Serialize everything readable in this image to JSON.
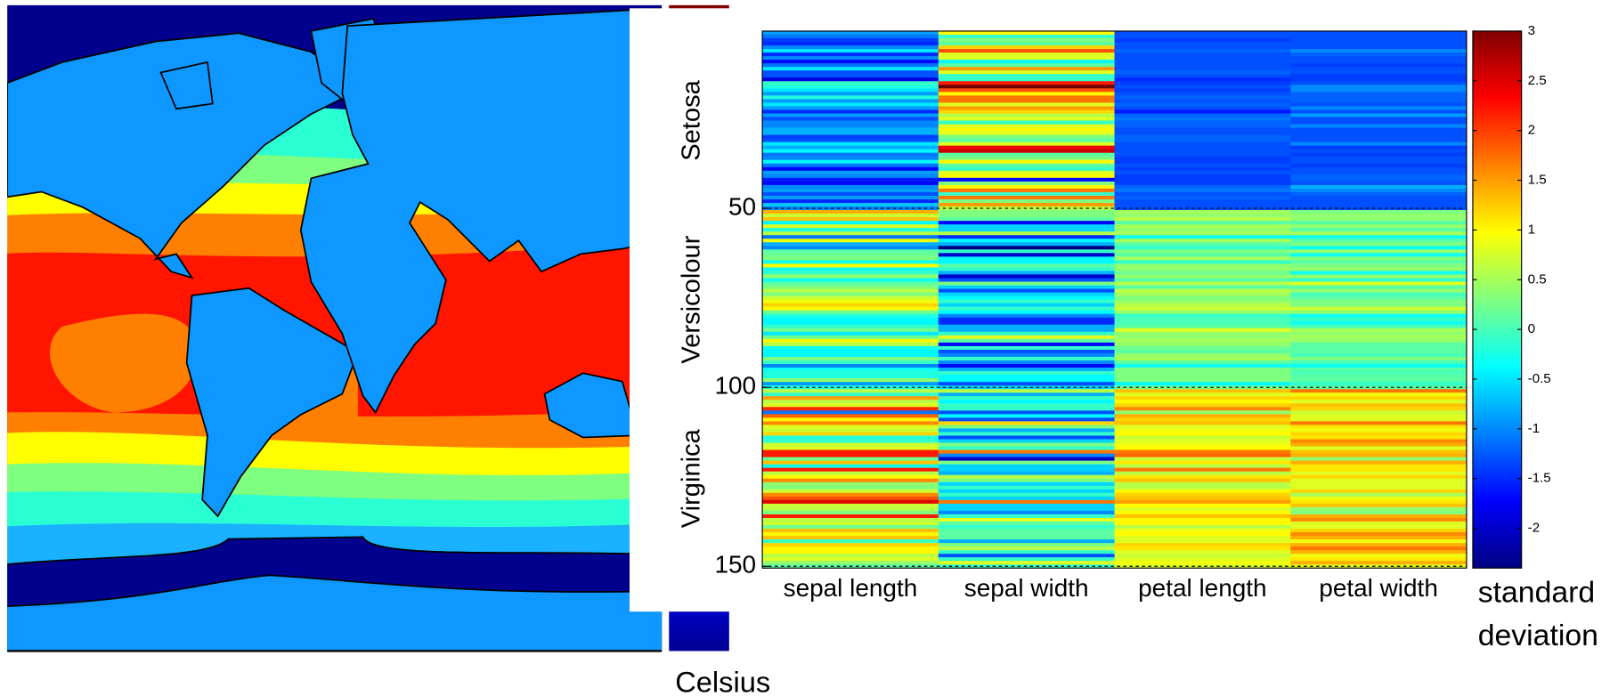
{
  "chart_data": {
    "type": "heatmap",
    "colormap": "jet",
    "categories": [
      "sepal length",
      "sepal width",
      "petal length",
      "petal width"
    ],
    "groups": [
      "Setosa",
      "Versicolour",
      "Virginica"
    ],
    "ylim": [
      0.5,
      150.5
    ],
    "yticks": [
      50,
      100,
      150
    ],
    "grid": true,
    "colorbar": {
      "label": [
        "standard",
        "deviation"
      ],
      "lim": [
        -2.4,
        3.0
      ],
      "ticks": [
        3,
        2.5,
        2,
        1.5,
        1,
        0.5,
        0,
        -0.5,
        -1,
        -1.5,
        -2
      ]
    },
    "values": [
      [
        -0.9,
        1.0,
        -1.3,
        -1.3
      ],
      [
        -1.1,
        -0.1,
        -1.3,
        -1.3
      ],
      [
        -1.4,
        0.3,
        -1.4,
        -1.3
      ],
      [
        -1.5,
        0.1,
        -1.3,
        -1.3
      ],
      [
        -1.0,
        1.2,
        -1.3,
        -1.3
      ],
      [
        -0.5,
        1.9,
        -1.2,
        -1.0
      ],
      [
        -1.5,
        0.8,
        -1.3,
        -1.2
      ],
      [
        -1.0,
        0.8,
        -1.3,
        -1.3
      ],
      [
        -1.7,
        -0.4,
        -1.3,
        -1.3
      ],
      [
        -1.1,
        0.1,
        -1.3,
        -1.4
      ],
      [
        -0.5,
        1.5,
        -1.3,
        -1.3
      ],
      [
        -1.3,
        0.8,
        -1.2,
        -1.3
      ],
      [
        -1.3,
        -0.1,
        -1.3,
        -1.4
      ],
      [
        -1.9,
        -0.1,
        -1.5,
        -1.4
      ],
      [
        -0.1,
        2.2,
        -1.4,
        -1.3
      ],
      [
        -0.2,
        3.1,
        -1.3,
        -1.0
      ],
      [
        -0.5,
        1.9,
        -1.4,
        -1.0
      ],
      [
        -0.9,
        1.0,
        -1.3,
        -1.2
      ],
      [
        -0.2,
        1.7,
        -1.2,
        -1.2
      ],
      [
        -0.9,
        1.7,
        -1.3,
        -1.2
      ],
      [
        -0.5,
        0.8,
        -1.2,
        -1.3
      ],
      [
        -0.9,
        1.5,
        -1.3,
        -1.0
      ],
      [
        -1.5,
        1.2,
        -1.6,
        -1.3
      ],
      [
        -0.9,
        0.6,
        -1.2,
        -0.9
      ],
      [
        -1.3,
        0.8,
        -1.1,
        -1.3
      ],
      [
        -1.0,
        -0.1,
        -1.2,
        -1.3
      ],
      [
        -1.0,
        0.8,
        -1.2,
        -1.0
      ],
      [
        -0.8,
        1.0,
        -1.3,
        -1.3
      ],
      [
        -0.8,
        0.8,
        -1.3,
        -1.3
      ],
      [
        -1.4,
        0.3,
        -1.2,
        -1.3
      ],
      [
        -1.3,
        0.1,
        -1.2,
        -1.3
      ],
      [
        -0.5,
        0.8,
        -1.3,
        -1.0
      ],
      [
        -0.8,
        2.4,
        -1.3,
        -1.4
      ],
      [
        -0.4,
        2.6,
        -1.3,
        -1.3
      ],
      [
        -1.1,
        0.1,
        -1.3,
        -1.4
      ],
      [
        -1.0,
        0.3,
        -1.4,
        -1.3
      ],
      [
        -0.4,
        1.0,
        -1.4,
        -1.3
      ],
      [
        -1.1,
        0.1,
        -1.3,
        -1.4
      ],
      [
        -1.7,
        -0.1,
        -1.4,
        -1.3
      ],
      [
        -0.9,
        0.8,
        -1.3,
        -1.3
      ],
      [
        -1.0,
        1.0,
        -1.4,
        -1.2
      ],
      [
        -1.6,
        -1.7,
        -1.4,
        -1.2
      ],
      [
        -1.7,
        0.3,
        -1.4,
        -1.3
      ],
      [
        -1.0,
        1.0,
        -1.2,
        -0.8
      ],
      [
        -0.9,
        1.7,
        -1.1,
        -1.0
      ],
      [
        -1.3,
        -0.1,
        -1.3,
        -1.2
      ],
      [
        -0.9,
        1.7,
        -1.2,
        -1.3
      ],
      [
        -1.5,
        0.3,
        -1.3,
        -1.3
      ],
      [
        -0.7,
        1.5,
        -1.3,
        -1.3
      ],
      [
        -1.0,
        0.6,
        -1.3,
        -1.3
      ],
      [
        1.4,
        0.3,
        0.5,
        0.3
      ],
      [
        0.7,
        0.3,
        0.4,
        0.4
      ],
      [
        1.3,
        0.1,
        0.6,
        0.4
      ],
      [
        -0.4,
        -1.7,
        0.1,
        0.1
      ],
      [
        0.8,
        -0.6,
        0.5,
        0.4
      ],
      [
        -0.2,
        -0.6,
        0.4,
        0.1
      ],
      [
        0.6,
        0.6,
        0.5,
        0.5
      ],
      [
        -1.1,
        -1.5,
        -0.3,
        -0.3
      ],
      [
        0.9,
        -0.4,
        0.5,
        0.1
      ],
      [
        -0.8,
        -0.8,
        0.1,
        0.3
      ],
      [
        -1.0,
        -2.4,
        -0.1,
        -0.3
      ],
      [
        0.1,
        -0.1,
        0.3,
        0.4
      ],
      [
        0.2,
        -2.0,
        0.1,
        -0.3
      ],
      [
        0.3,
        -0.4,
        0.5,
        0.3
      ],
      [
        -0.3,
        -0.4,
        -0.1,
        0.1
      ],
      [
        1.0,
        0.1,
        0.4,
        0.3
      ],
      [
        -0.3,
        -0.1,
        0.4,
        0.4
      ],
      [
        -0.1,
        -0.8,
        0.2,
        -0.3
      ],
      [
        0.4,
        -2.0,
        0.4,
        0.4
      ],
      [
        -0.3,
        -1.3,
        0.1,
        -0.1
      ],
      [
        0.1,
        0.3,
        0.6,
        0.8
      ],
      [
        0.3,
        -0.6,
        0.1,
        0.1
      ],
      [
        0.6,
        -1.3,
        0.6,
        0.4
      ],
      [
        0.3,
        -0.6,
        0.5,
        0
      ],
      [
        0.7,
        -0.4,
        0.3,
        0.1
      ],
      [
        0.9,
        -0.1,
        0.4,
        0.3
      ],
      [
        1.2,
        -0.6,
        0.6,
        0.3
      ],
      [
        1.0,
        -0.1,
        0.7,
        0.7
      ],
      [
        0.2,
        -0.4,
        0.4,
        0.4
      ],
      [
        -0.2,
        -1.0,
        -0.1,
        -0.3
      ],
      [
        -0.4,
        -1.5,
        0,
        -0.1
      ],
      [
        -0.4,
        -1.5,
        0,
        -0.3
      ],
      [
        -0.1,
        -0.8,
        0.1,
        0
      ],
      [
        0.2,
        -0.8,
        0.8,
        0.5
      ],
      [
        -0.5,
        -0.1,
        0.4,
        0.4
      ],
      [
        0.2,
        0.8,
        0.4,
        0.5
      ],
      [
        1.0,
        0.1,
        0.5,
        0.4
      ],
      [
        0.6,
        -1.7,
        0.4,
        0.1
      ],
      [
        -0.3,
        -0.1,
        0.2,
        0.1
      ],
      [
        -0.4,
        -1.3,
        0.1,
        0.1
      ],
      [
        -0.4,
        -1.0,
        0.4,
        0
      ],
      [
        0.3,
        -0.1,
        0.5,
        0.3
      ],
      [
        -0.1,
        -1.0,
        0.1,
        0
      ],
      [
        -1.0,
        -1.7,
        -0.3,
        -0.3
      ],
      [
        -0.3,
        -0.8,
        0.3,
        0.1
      ],
      [
        -0.2,
        -0.1,
        0.3,
        0
      ],
      [
        -0.2,
        -0.4,
        0.3,
        0.1
      ],
      [
        0.4,
        -0.4,
        0.3,
        0.1
      ],
      [
        -0.9,
        -1.3,
        -0.4,
        -0.1
      ],
      [
        -0.2,
        -0.6,
        0.2,
        0.1
      ],
      [
        0.6,
        0.6,
        1.3,
        1.7
      ],
      [
        -0.1,
        -0.8,
        0.8,
        0.9
      ],
      [
        1.5,
        -0.1,
        1.2,
        1.2
      ],
      [
        0.6,
        -0.4,
        1.0,
        0.8
      ],
      [
        0.8,
        -0.1,
        1.2,
        1.3
      ],
      [
        2.1,
        -0.1,
        1.6,
        1.2
      ],
      [
        -1.1,
        -1.3,
        0.4,
        0.7
      ],
      [
        1.8,
        -0.4,
        1.4,
        0.8
      ],
      [
        1.0,
        -1.3,
        1.2,
        0.8
      ],
      [
        1.6,
        1.2,
        1.3,
        1.7
      ],
      [
        0.8,
        0.3,
        0.8,
        1.1
      ],
      [
        0.7,
        -0.8,
        0.9,
        0.9
      ],
      [
        1.2,
        -0.1,
        1.0,
        1.2
      ],
      [
        -0.2,
        -1.3,
        0.7,
        1.1
      ],
      [
        -0.1,
        -0.6,
        0.8,
        1.6
      ],
      [
        0.7,
        0.3,
        0.9,
        1.4
      ],
      [
        0.8,
        -0.1,
        1.0,
        0.8
      ],
      [
        2.2,
        1.7,
        1.7,
        1.3
      ],
      [
        2.2,
        -1.0,
        1.8,
        1.4
      ],
      [
        0.2,
        -2.0,
        0.7,
        0.4
      ],
      [
        1.3,
        0.3,
        1.1,
        1.4
      ],
      [
        -0.3,
        -0.6,
        0.6,
        1.1
      ],
      [
        2.2,
        -0.6,
        1.7,
        1.1
      ],
      [
        0.6,
        -0.8,
        0.6,
        0.8
      ],
      [
        1.0,
        0.6,
        1.1,
        1.2
      ],
      [
        1.6,
        0.3,
        1.3,
        0.8
      ],
      [
        0.4,
        -0.6,
        0.6,
        0.8
      ],
      [
        0.3,
        -0.1,
        0.6,
        0.8
      ],
      [
        0.7,
        -0.6,
        1.0,
        1.2
      ],
      [
        1.6,
        -0.1,
        1.2,
        0.5
      ],
      [
        1.9,
        -0.6,
        1.3,
        0.9
      ],
      [
        2.5,
        1.7,
        1.5,
        1.1
      ],
      [
        0.7,
        -0.6,
        1.0,
        1.3
      ],
      [
        0.6,
        -0.6,
        0.8,
        0.4
      ],
      [
        0.3,
        -1.0,
        1.0,
        0.3
      ],
      [
        2.2,
        -0.1,
        1.3,
        1.4
      ],
      [
        0.6,
        0.8,
        1.0,
        1.6
      ],
      [
        0.7,
        0.1,
        1.0,
        0.8
      ],
      [
        0.2,
        -0.1,
        0.6,
        0.8
      ],
      [
        1.3,
        0.1,
        0.9,
        1.2
      ],
      [
        1.0,
        0.1,
        1.0,
        1.6
      ],
      [
        1.3,
        0.1,
        0.8,
        1.4
      ],
      [
        -0.1,
        -0.8,
        0.8,
        0.9
      ],
      [
        1.2,
        0.3,
        1.2,
        1.4
      ],
      [
        1.0,
        0.6,
        1.1,
        1.7
      ],
      [
        1.0,
        -0.1,
        0.8,
        1.4
      ],
      [
        0.6,
        -1.3,
        0.7,
        0.9
      ],
      [
        0.8,
        -0.1,
        0.8,
        1.1
      ],
      [
        0.4,
        0.8,
        0.9,
        1.4
      ],
      [
        0.1,
        -0.1,
        0.8,
        0.8
      ]
    ]
  },
  "background_map": {
    "colorbar_label": "Celsius"
  }
}
